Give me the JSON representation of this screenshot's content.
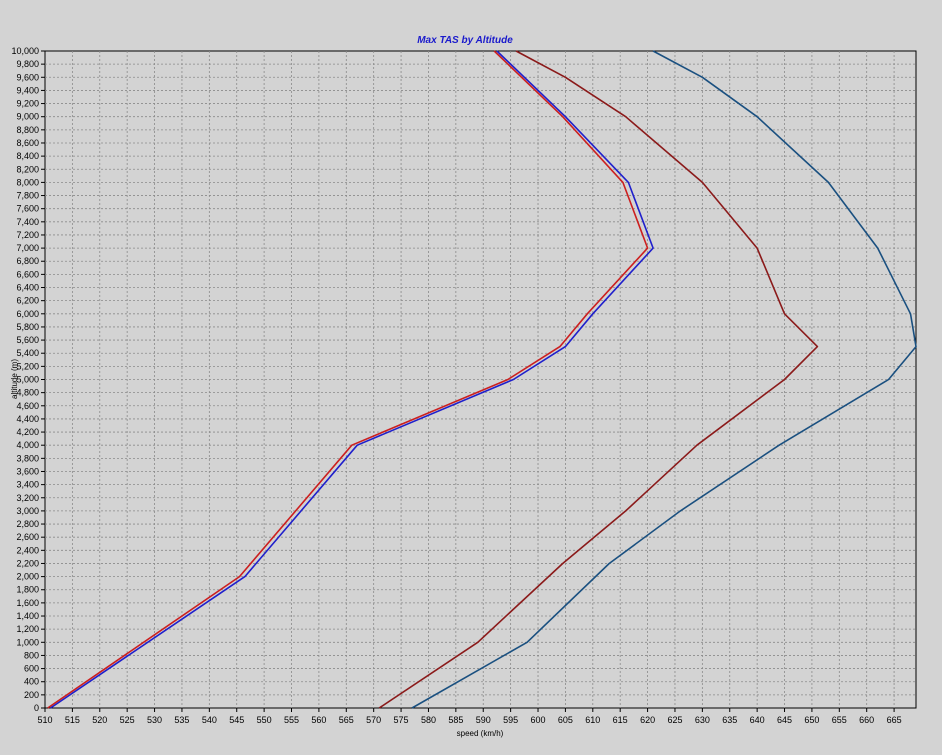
{
  "chart_data": {
    "type": "line",
    "title": "Max TAS by Altitude",
    "xlabel": "speed (km/h)",
    "ylabel": "altitude (m)",
    "xlim": [
      510,
      669
    ],
    "ylim": [
      0,
      10000
    ],
    "grid": true,
    "legend": "none",
    "x_ticks": [
      510,
      515,
      520,
      525,
      530,
      535,
      540,
      545,
      550,
      555,
      560,
      565,
      570,
      575,
      580,
      585,
      590,
      595,
      600,
      605,
      610,
      615,
      620,
      625,
      630,
      635,
      640,
      645,
      650,
      655,
      660,
      665
    ],
    "y_ticks": [
      0,
      200,
      400,
      600,
      800,
      1000,
      1200,
      1400,
      1600,
      1800,
      2000,
      2200,
      2400,
      2600,
      2800,
      3000,
      3200,
      3400,
      3600,
      3800,
      4000,
      4200,
      4400,
      4600,
      4800,
      5000,
      5200,
      5400,
      5600,
      5800,
      6000,
      6200,
      6400,
      6600,
      6800,
      7000,
      7200,
      7400,
      7600,
      7800,
      8000,
      8200,
      8400,
      8600,
      8800,
      9000,
      9200,
      9400,
      9600,
      9800,
      10000
    ],
    "x_tick_labels": [
      "510",
      "515",
      "520",
      "525",
      "530",
      "535",
      "540",
      "545",
      "550",
      "555",
      "560",
      "565",
      "570",
      "575",
      "580",
      "585",
      "590",
      "595",
      "600",
      "605",
      "610",
      "615",
      "620",
      "625",
      "630",
      "635",
      "640",
      "645",
      "650",
      "655",
      "660",
      "665"
    ],
    "y_tick_labels": [
      "0",
      "200",
      "400",
      "600",
      "800",
      "1,000",
      "1,200",
      "1,400",
      "1,600",
      "1,800",
      "2,000",
      "2,200",
      "2,400",
      "2,600",
      "2,800",
      "3,000",
      "3,200",
      "3,400",
      "3,600",
      "3,800",
      "4,000",
      "4,200",
      "4,400",
      "4,600",
      "4,800",
      "5,000",
      "5,200",
      "5,400",
      "5,600",
      "5,800",
      "6,000",
      "6,200",
      "6,400",
      "6,600",
      "6,800",
      "7,000",
      "7,200",
      "7,400",
      "7,600",
      "7,800",
      "8,000",
      "8,200",
      "8,400",
      "8,600",
      "8,800",
      "9,000",
      "9,200",
      "9,400",
      "9,600",
      "9,800",
      "10,000"
    ],
    "series": [
      {
        "color": "#1f1fcc",
        "points": [
          [
            511,
            0
          ],
          [
            546.5,
            2000
          ],
          [
            567,
            4000
          ],
          [
            595.5,
            5000
          ],
          [
            605,
            5500
          ],
          [
            610,
            6000
          ],
          [
            621,
            7000
          ],
          [
            616.5,
            8000
          ],
          [
            605,
            9000
          ],
          [
            592.5,
            10000
          ]
        ]
      },
      {
        "color": "#cc1f1f",
        "points": [
          [
            510.5,
            0
          ],
          [
            545.5,
            2000
          ],
          [
            566,
            4000
          ],
          [
            594.5,
            5000
          ],
          [
            604,
            5500
          ],
          [
            609,
            6000
          ],
          [
            620,
            7000
          ],
          [
            615.5,
            8000
          ],
          [
            604.5,
            9000
          ],
          [
            592,
            10000
          ]
        ]
      },
      {
        "color": "#8b1a1a",
        "points": [
          [
            571,
            0
          ],
          [
            589,
            1000
          ],
          [
            604.5,
            2200
          ],
          [
            616,
            3000
          ],
          [
            629,
            4000
          ],
          [
            645,
            5000
          ],
          [
            651,
            5500
          ],
          [
            645,
            6000
          ],
          [
            640,
            7000
          ],
          [
            630,
            8000
          ],
          [
            616,
            9000
          ],
          [
            605,
            9600
          ],
          [
            596,
            10000
          ]
        ]
      },
      {
        "color": "#1a5080",
        "points": [
          [
            577,
            0
          ],
          [
            598,
            1000
          ],
          [
            613,
            2200
          ],
          [
            626,
            3000
          ],
          [
            644,
            4000
          ],
          [
            664,
            5000
          ],
          [
            669,
            5500
          ],
          [
            668,
            6000
          ],
          [
            662,
            7000
          ],
          [
            653,
            8000
          ],
          [
            640,
            9000
          ],
          [
            630,
            9600
          ],
          [
            621,
            10000
          ]
        ]
      }
    ]
  }
}
